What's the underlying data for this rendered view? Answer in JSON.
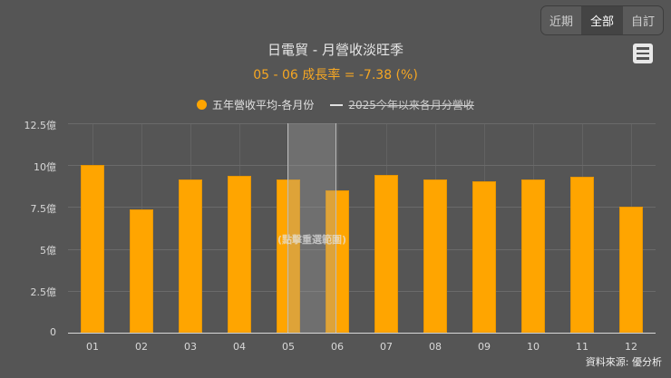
{
  "range_buttons": [
    {
      "label": "近期",
      "active": false
    },
    {
      "label": "全部",
      "active": true
    },
    {
      "label": "自訂",
      "active": false
    }
  ],
  "menu_icon": "hamburger-menu-icon",
  "title": "日電貿 - 月營收淡旺季",
  "subtitle": "05 - 06 成長率 = -7.38 (%)",
  "legend": [
    {
      "label": "五年營收平均-各月份",
      "symbol": "dot",
      "color": "#ffa500",
      "visible": true
    },
    {
      "label": "2025今年以來各月分營收",
      "symbol": "line",
      "color": "#e0e0e0",
      "visible": false
    }
  ],
  "selection_hint": "(點擊重選範圍)",
  "source": "資料來源: 優分析",
  "y_ticks": [
    "0",
    "2.5億",
    "5億",
    "7.5億",
    "10億",
    "12.5億"
  ],
  "x_ticks": [
    "01",
    "02",
    "03",
    "04",
    "05",
    "06",
    "07",
    "08",
    "09",
    "10",
    "11",
    "12"
  ],
  "colors": {
    "bar": "#ffa500",
    "background": "#555555",
    "subtitle": "#f5a623"
  },
  "chart_data": {
    "type": "bar",
    "title": "日電貿 - 月營收淡旺季",
    "subtitle": "05 - 06 成長率 = -7.38 (%)",
    "categories": [
      "01",
      "02",
      "03",
      "04",
      "05",
      "06",
      "07",
      "08",
      "09",
      "10",
      "11",
      "12"
    ],
    "series": [
      {
        "name": "五年營收平均-各月份",
        "values": [
          10.0,
          7.36,
          9.14,
          9.36,
          9.14,
          8.47,
          9.42,
          9.12,
          9.04,
          9.17,
          9.31,
          7.52
        ],
        "unit": "億",
        "color": "#ffa500",
        "visible": true
      },
      {
        "name": "2025今年以來各月分營收",
        "values": [],
        "visible": false
      }
    ],
    "xlabel": "",
    "ylabel": "",
    "ylim": [
      0,
      12.5
    ],
    "y_tick_labels": [
      "0",
      "2.5億",
      "5億",
      "7.5億",
      "10億",
      "12.5億"
    ],
    "grid": true,
    "legend_position": "top",
    "highlighted_range": [
      "05",
      "06"
    ],
    "annotation": "(點擊重選範圍)",
    "source": "資料來源: 優分析"
  }
}
